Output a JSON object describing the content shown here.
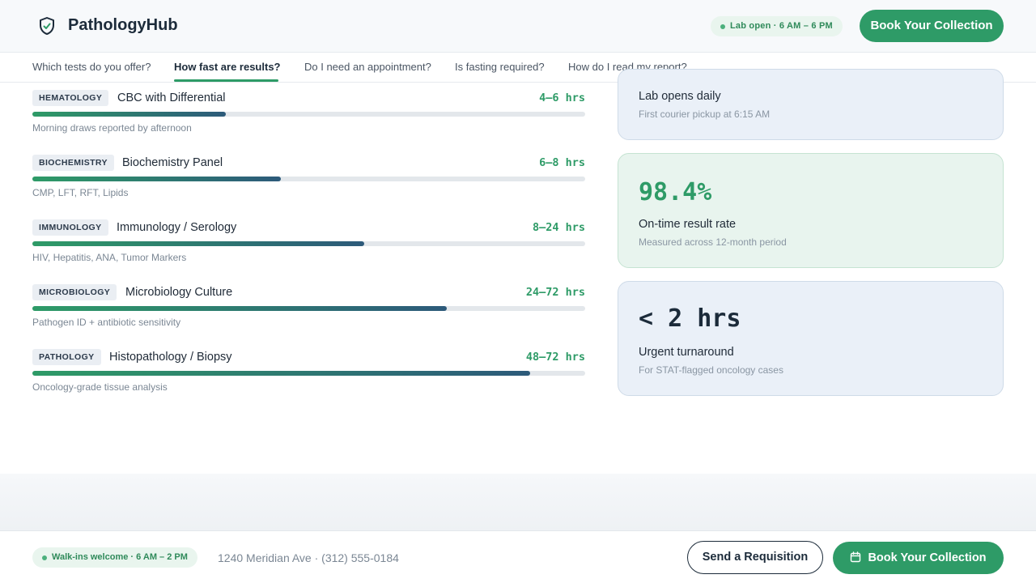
{
  "header": {
    "brand": "PathologyHub",
    "logo_icon": "shield-check-icon",
    "lab_status": "Lab open · 6 AM – 6 PM",
    "cta": "Book Your Collection"
  },
  "nav": {
    "items": [
      {
        "label": "Which tests do you offer?",
        "active": false
      },
      {
        "label": "How fast are results?",
        "active": true
      },
      {
        "label": "Do I need an appointment?",
        "active": false
      },
      {
        "label": "Is fasting required?",
        "active": false
      },
      {
        "label": "How do I read my report?",
        "active": false
      }
    ]
  },
  "tests": [
    {
      "tag": "HEMATOLOGY",
      "name": "CBC with Differential",
      "time": "4–6 hrs",
      "progress": 0.35,
      "note": "Morning draws reported by afternoon"
    },
    {
      "tag": "BIOCHEMISTRY",
      "name": "Biochemistry Panel",
      "time": "6–8 hrs",
      "progress": 0.45,
      "note": "CMP, LFT, RFT, Lipids"
    },
    {
      "tag": "IMMUNOLOGY",
      "name": "Immunology / Serology",
      "time": "8–24 hrs",
      "progress": 0.6,
      "note": "HIV, Hepatitis, ANA, Tumor Markers"
    },
    {
      "tag": "MICROBIOLOGY",
      "name": "Microbiology Culture",
      "time": "24–72 hrs",
      "progress": 0.75,
      "note": "Pathogen ID + antibiotic sensitivity"
    },
    {
      "tag": "PATHOLOGY",
      "name": "Histopathology / Biopsy",
      "time": "48–72 hrs",
      "progress": 0.9,
      "note": "Oncology-grade tissue analysis"
    }
  ],
  "cards": {
    "opens": {
      "label": "Lab opens daily",
      "sub": "First courier pickup at 6:15 AM"
    },
    "ontime": {
      "value": "98.4%",
      "label": "On-time result rate",
      "sub": "Measured across 12-month period",
      "color": "#2e9b67"
    },
    "urgent": {
      "value": "< 2 hrs",
      "label": "Urgent turnaround",
      "sub": "For STAT-flagged oncology cases",
      "color": "#1c2b3a"
    }
  },
  "footer": {
    "walkins": "Walk-ins welcome · 6 AM – 2 PM",
    "address": "1240 Meridian Ave · (312) 555-0184",
    "requisition": "Send a Requisition",
    "cta": "Book Your Collection",
    "cta_icon": "calendar-icon"
  }
}
